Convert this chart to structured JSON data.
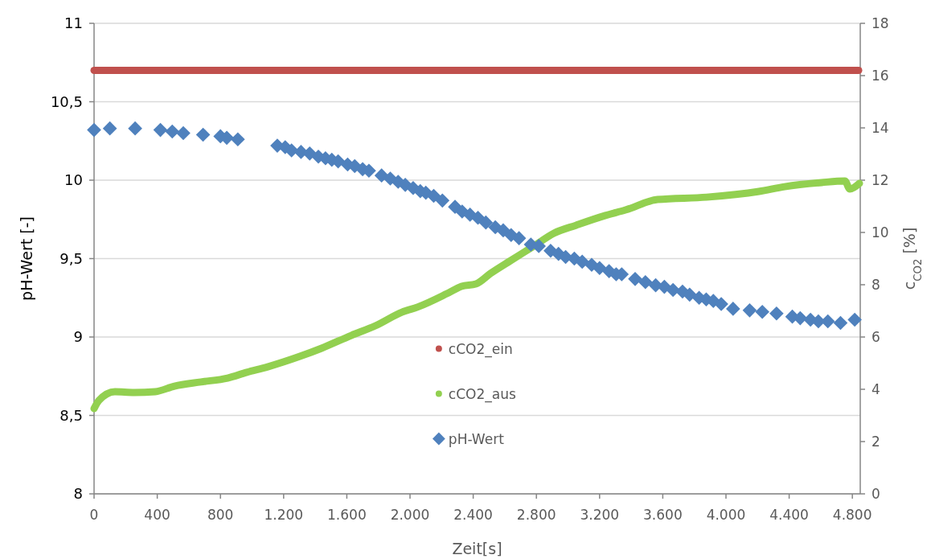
{
  "chart_data": {
    "type": "scatter",
    "xlabel": "Zeit[s]",
    "ylabel": "pH-Wert [-]",
    "y2label": "c$_{CO2}$ [%]",
    "xlim": [
      0,
      4850
    ],
    "xticks": [
      0,
      400,
      800,
      {
        "value": 1200,
        "label": "1.200"
      },
      {
        "value": 1600,
        "label": "1.600"
      },
      {
        "value": 2000,
        "label": "2.000"
      },
      {
        "value": 2400,
        "label": "2.400"
      },
      {
        "value": 2800,
        "label": "2.800"
      },
      {
        "value": 3200,
        "label": "3.200"
      },
      {
        "value": 3600,
        "label": "3.600"
      },
      {
        "value": 4000,
        "label": "4.000"
      },
      {
        "value": 4400,
        "label": "4.400"
      },
      {
        "value": 4800,
        "label": "4.800"
      }
    ],
    "ylim": [
      8,
      11
    ],
    "yticks": [
      8,
      {
        "value": 8.5,
        "label": "8,5"
      },
      9,
      {
        "value": 9.5,
        "label": "9,5"
      },
      10,
      {
        "value": 10.5,
        "label": "10,5"
      },
      11
    ],
    "y2lim": [
      0,
      18
    ],
    "y2ticks": [
      0,
      2,
      4,
      6,
      8,
      10,
      12,
      14,
      16,
      18
    ],
    "grid": "y",
    "legend": "center",
    "series": [
      {
        "name": "cCO2_ein",
        "type": "line",
        "axis": "y2",
        "color": "#c0504d",
        "x": [
          0,
          4840
        ],
        "values": [
          16.2,
          16.2
        ]
      },
      {
        "name": "cCO2_aus",
        "type": "line",
        "axis": "y2",
        "color": "#92d050",
        "x": [
          0,
          30,
          132,
          254,
          387,
          509,
          677,
          845,
          967,
          1099,
          1303,
          1440,
          1628,
          1781,
          1949,
          2050,
          2234,
          2326,
          2417,
          2509,
          2636,
          2784,
          2911,
          3053,
          3237,
          3364,
          3567,
          3878,
          4209,
          4371,
          4606,
          4753,
          4784,
          4845
        ],
        "values": [
          3.26,
          3.57,
          3.91,
          3.88,
          3.91,
          4.12,
          4.28,
          4.43,
          4.65,
          4.86,
          5.26,
          5.57,
          6.06,
          6.43,
          6.95,
          7.15,
          7.66,
          7.94,
          8.03,
          8.43,
          8.92,
          9.48,
          9.97,
          10.28,
          10.65,
          10.86,
          11.26,
          11.35,
          11.57,
          11.75,
          11.91,
          11.97,
          11.66,
          11.88
        ]
      },
      {
        "name": "pH-Wert",
        "marker": "diamond",
        "color": "#4f81bd",
        "x": [
          0,
          100,
          260,
          420,
          495,
          565,
          690,
          800,
          840,
          910,
          1160,
          1210,
          1250,
          1310,
          1365,
          1420,
          1465,
          1505,
          1545,
          1605,
          1650,
          1700,
          1740,
          1820,
          1875,
          1925,
          1970,
          2020,
          2065,
          2100,
          2150,
          2205,
          2285,
          2330,
          2380,
          2430,
          2480,
          2540,
          2590,
          2640,
          2690,
          2765,
          2815,
          2890,
          2940,
          2985,
          3040,
          3090,
          3150,
          3200,
          3260,
          3305,
          3340,
          3425,
          3490,
          3555,
          3610,
          3665,
          3725,
          3770,
          3830,
          3875,
          3920,
          3970,
          4045,
          4150,
          4230,
          4320,
          4420,
          4470,
          4535,
          4585,
          4645,
          4725,
          4815
        ],
        "values": [
          10.32,
          10.33,
          10.33,
          10.32,
          10.31,
          10.3,
          10.29,
          10.28,
          10.27,
          10.26,
          10.22,
          10.21,
          10.19,
          10.18,
          10.17,
          10.15,
          10.14,
          10.13,
          10.12,
          10.1,
          10.09,
          10.07,
          10.06,
          10.03,
          10.01,
          9.99,
          9.97,
          9.95,
          9.93,
          9.92,
          9.9,
          9.87,
          9.83,
          9.8,
          9.78,
          9.76,
          9.73,
          9.7,
          9.68,
          9.65,
          9.63,
          9.59,
          9.58,
          9.55,
          9.53,
          9.51,
          9.5,
          9.48,
          9.46,
          9.44,
          9.42,
          9.4,
          9.4,
          9.37,
          9.35,
          9.33,
          9.32,
          9.3,
          9.29,
          9.27,
          9.25,
          9.24,
          9.23,
          9.21,
          9.18,
          9.17,
          9.16,
          9.15,
          9.13,
          9.12,
          9.11,
          9.1,
          9.1,
          9.09,
          9.11
        ]
      }
    ]
  }
}
